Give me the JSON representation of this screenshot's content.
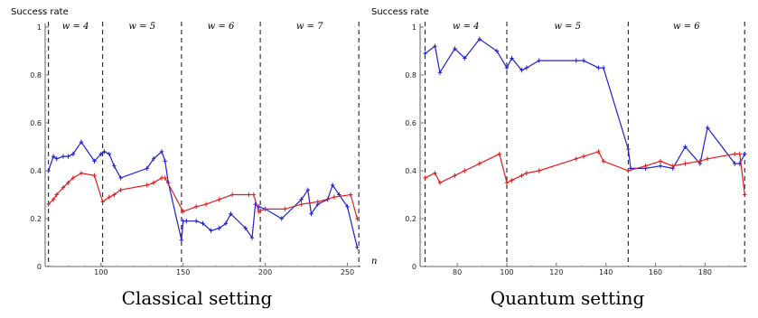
{
  "chart_data": [
    {
      "type": "line",
      "title": "Classical setting",
      "ylabel": "Success rate",
      "xlabel": "n",
      "xlim": [
        66,
        258
      ],
      "ylim": [
        0,
        1
      ],
      "xticks": [
        100,
        150,
        200,
        250
      ],
      "yticks": [
        0,
        0.2,
        0.4,
        0.6,
        0.8,
        1
      ],
      "colors": {
        "blue": "#1f1fd6",
        "red": "#e01e1e"
      },
      "regions": [
        {
          "label": "w = 4",
          "from": 68,
          "to": 101
        },
        {
          "label": "w = 5",
          "from": 101,
          "to": 149
        },
        {
          "label": "w = 6",
          "from": 149,
          "to": 197
        },
        {
          "label": "w = 7",
          "from": 197,
          "to": 257
        }
      ],
      "series": [
        {
          "color": "blue",
          "points": [
            [
              68,
              0.4
            ],
            [
              71,
              0.46
            ],
            [
              73,
              0.45
            ],
            [
              77,
              0.46
            ],
            [
              80,
              0.46
            ],
            [
              83,
              0.47
            ],
            [
              88,
              0.52
            ],
            [
              96,
              0.44
            ],
            [
              100,
              0.47
            ],
            [
              102,
              0.48
            ],
            [
              105,
              0.47
            ],
            [
              108,
              0.42
            ],
            [
              112,
              0.37
            ],
            [
              128,
              0.41
            ],
            [
              132,
              0.45
            ],
            [
              137,
              0.48
            ],
            [
              139,
              0.44
            ],
            [
              141,
              0.35
            ],
            [
              149,
              0.11
            ],
            [
              150,
              0.19
            ],
            [
              152,
              0.19
            ],
            [
              158,
              0.19
            ],
            [
              162,
              0.18
            ],
            [
              167,
              0.15
            ],
            [
              172,
              0.16
            ],
            [
              176,
              0.18
            ],
            [
              179,
              0.22
            ],
            [
              188,
              0.16
            ],
            [
              192,
              0.12
            ],
            [
              194,
              0.26
            ],
            [
              196,
              0.25
            ],
            [
              200,
              0.24
            ],
            [
              210,
              0.2
            ],
            [
              222,
              0.28
            ],
            [
              226,
              0.32
            ],
            [
              228,
              0.22
            ],
            [
              232,
              0.26
            ],
            [
              238,
              0.28
            ],
            [
              241,
              0.34
            ],
            [
              245,
              0.3
            ],
            [
              250,
              0.25
            ],
            [
              256,
              0.08
            ]
          ]
        },
        {
          "color": "red",
          "points": [
            [
              68,
              0.26
            ],
            [
              71,
              0.28
            ],
            [
              73,
              0.3
            ],
            [
              77,
              0.33
            ],
            [
              80,
              0.35
            ],
            [
              83,
              0.37
            ],
            [
              88,
              0.39
            ],
            [
              96,
              0.38
            ],
            [
              101,
              0.27
            ],
            [
              105,
              0.29
            ],
            [
              108,
              0.3
            ],
            [
              112,
              0.32
            ],
            [
              128,
              0.34
            ],
            [
              132,
              0.35
            ],
            [
              137,
              0.37
            ],
            [
              139,
              0.37
            ],
            [
              150,
              0.23
            ],
            [
              158,
              0.25
            ],
            [
              164,
              0.26
            ],
            [
              172,
              0.28
            ],
            [
              180,
              0.3
            ],
            [
              190,
              0.3
            ],
            [
              193,
              0.3
            ],
            [
              196,
              0.23
            ],
            [
              200,
              0.24
            ],
            [
              212,
              0.24
            ],
            [
              222,
              0.26
            ],
            [
              232,
              0.27
            ],
            [
              242,
              0.29
            ],
            [
              252,
              0.3
            ],
            [
              256,
              0.2
            ]
          ]
        }
      ]
    },
    {
      "type": "line",
      "title": "Quantum setting",
      "ylabel": "Success rate",
      "xlabel": "",
      "xlim": [
        65,
        197
      ],
      "ylim": [
        0,
        1
      ],
      "xticks": [
        80,
        100,
        120,
        140,
        160,
        180
      ],
      "yticks": [
        0,
        0.2,
        0.4,
        0.6,
        0.8,
        1
      ],
      "colors": {
        "blue": "#1f1fd6",
        "red": "#e01e1e"
      },
      "regions": [
        {
          "label": "w = 4",
          "from": 67,
          "to": 100
        },
        {
          "label": "w = 5",
          "from": 100,
          "to": 149
        },
        {
          "label": "w = 6",
          "from": 149,
          "to": 196
        }
      ],
      "series": [
        {
          "color": "blue",
          "points": [
            [
              67,
              0.89
            ],
            [
              71,
              0.92
            ],
            [
              73,
              0.81
            ],
            [
              79,
              0.91
            ],
            [
              83,
              0.87
            ],
            [
              89,
              0.95
            ],
            [
              96,
              0.9
            ],
            [
              100,
              0.83
            ],
            [
              102,
              0.87
            ],
            [
              106,
              0.82
            ],
            [
              108,
              0.83
            ],
            [
              113,
              0.86
            ],
            [
              128,
              0.86
            ],
            [
              131,
              0.86
            ],
            [
              137,
              0.83
            ],
            [
              139,
              0.83
            ],
            [
              149,
              0.49
            ],
            [
              150,
              0.41
            ],
            [
              156,
              0.41
            ],
            [
              162,
              0.42
            ],
            [
              167,
              0.41
            ],
            [
              172,
              0.5
            ],
            [
              178,
              0.43
            ],
            [
              181,
              0.58
            ],
            [
              192,
              0.43
            ],
            [
              194,
              0.43
            ],
            [
              196,
              0.47
            ]
          ]
        },
        {
          "color": "red",
          "points": [
            [
              67,
              0.37
            ],
            [
              71,
              0.39
            ],
            [
              73,
              0.35
            ],
            [
              79,
              0.38
            ],
            [
              83,
              0.4
            ],
            [
              89,
              0.43
            ],
            [
              97,
              0.47
            ],
            [
              100,
              0.35
            ],
            [
              102,
              0.36
            ],
            [
              106,
              0.38
            ],
            [
              108,
              0.39
            ],
            [
              113,
              0.4
            ],
            [
              128,
              0.45
            ],
            [
              131,
              0.46
            ],
            [
              137,
              0.48
            ],
            [
              139,
              0.44
            ],
            [
              149,
              0.4
            ],
            [
              156,
              0.42
            ],
            [
              162,
              0.44
            ],
            [
              167,
              0.42
            ],
            [
              172,
              0.43
            ],
            [
              178,
              0.44
            ],
            [
              181,
              0.45
            ],
            [
              192,
              0.47
            ],
            [
              194,
              0.47
            ],
            [
              196,
              0.3
            ]
          ]
        }
      ]
    }
  ]
}
